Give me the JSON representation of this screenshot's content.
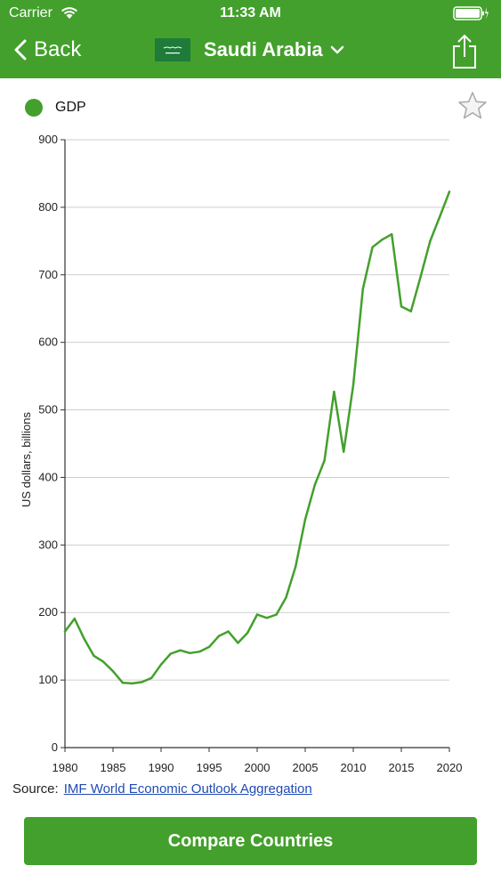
{
  "status_bar": {
    "carrier": "Carrier",
    "time": "11:33 AM"
  },
  "nav": {
    "back_label": "Back",
    "country": "Saudi Arabia"
  },
  "colors": {
    "accent": "#43a02c",
    "link": "#1f4bb3"
  },
  "legend": {
    "series_label": "GDP"
  },
  "chart_data": {
    "type": "line",
    "ylabel": "US dollars, billions",
    "xlim": [
      1980,
      2020
    ],
    "ylim": [
      0,
      900
    ],
    "x_ticks": [
      1980,
      1985,
      1990,
      1995,
      2000,
      2005,
      2010,
      2015,
      2020
    ],
    "y_ticks": [
      0,
      100,
      200,
      300,
      400,
      500,
      600,
      700,
      800,
      900
    ],
    "grid": true,
    "legend_position": "top-left",
    "series": [
      {
        "name": "GDP",
        "color": "#43a02c",
        "x": [
          1980,
          1981,
          1982,
          1983,
          1984,
          1985,
          1986,
          1987,
          1988,
          1989,
          1990,
          1991,
          1992,
          1993,
          1994,
          1995,
          1996,
          1997,
          1998,
          1999,
          2000,
          2001,
          2002,
          2003,
          2004,
          2005,
          2006,
          2007,
          2008,
          2009,
          2010,
          2011,
          2012,
          2013,
          2014,
          2015,
          2016,
          2017,
          2018,
          2019,
          2020
        ],
        "values": [
          172,
          191,
          161,
          136,
          127,
          113,
          96,
          95,
          97,
          103,
          123,
          139,
          144,
          140,
          142,
          149,
          165,
          172,
          155,
          170,
          197,
          192,
          197,
          222,
          268,
          338,
          389,
          425,
          527,
          438,
          537,
          679,
          741,
          752,
          760,
          653,
          646,
          697,
          750,
          786,
          823
        ]
      }
    ]
  },
  "source": {
    "label": "Source:",
    "link_text": "IMF World Economic Outlook Aggregation"
  },
  "compare_button": {
    "label": "Compare Countries"
  }
}
